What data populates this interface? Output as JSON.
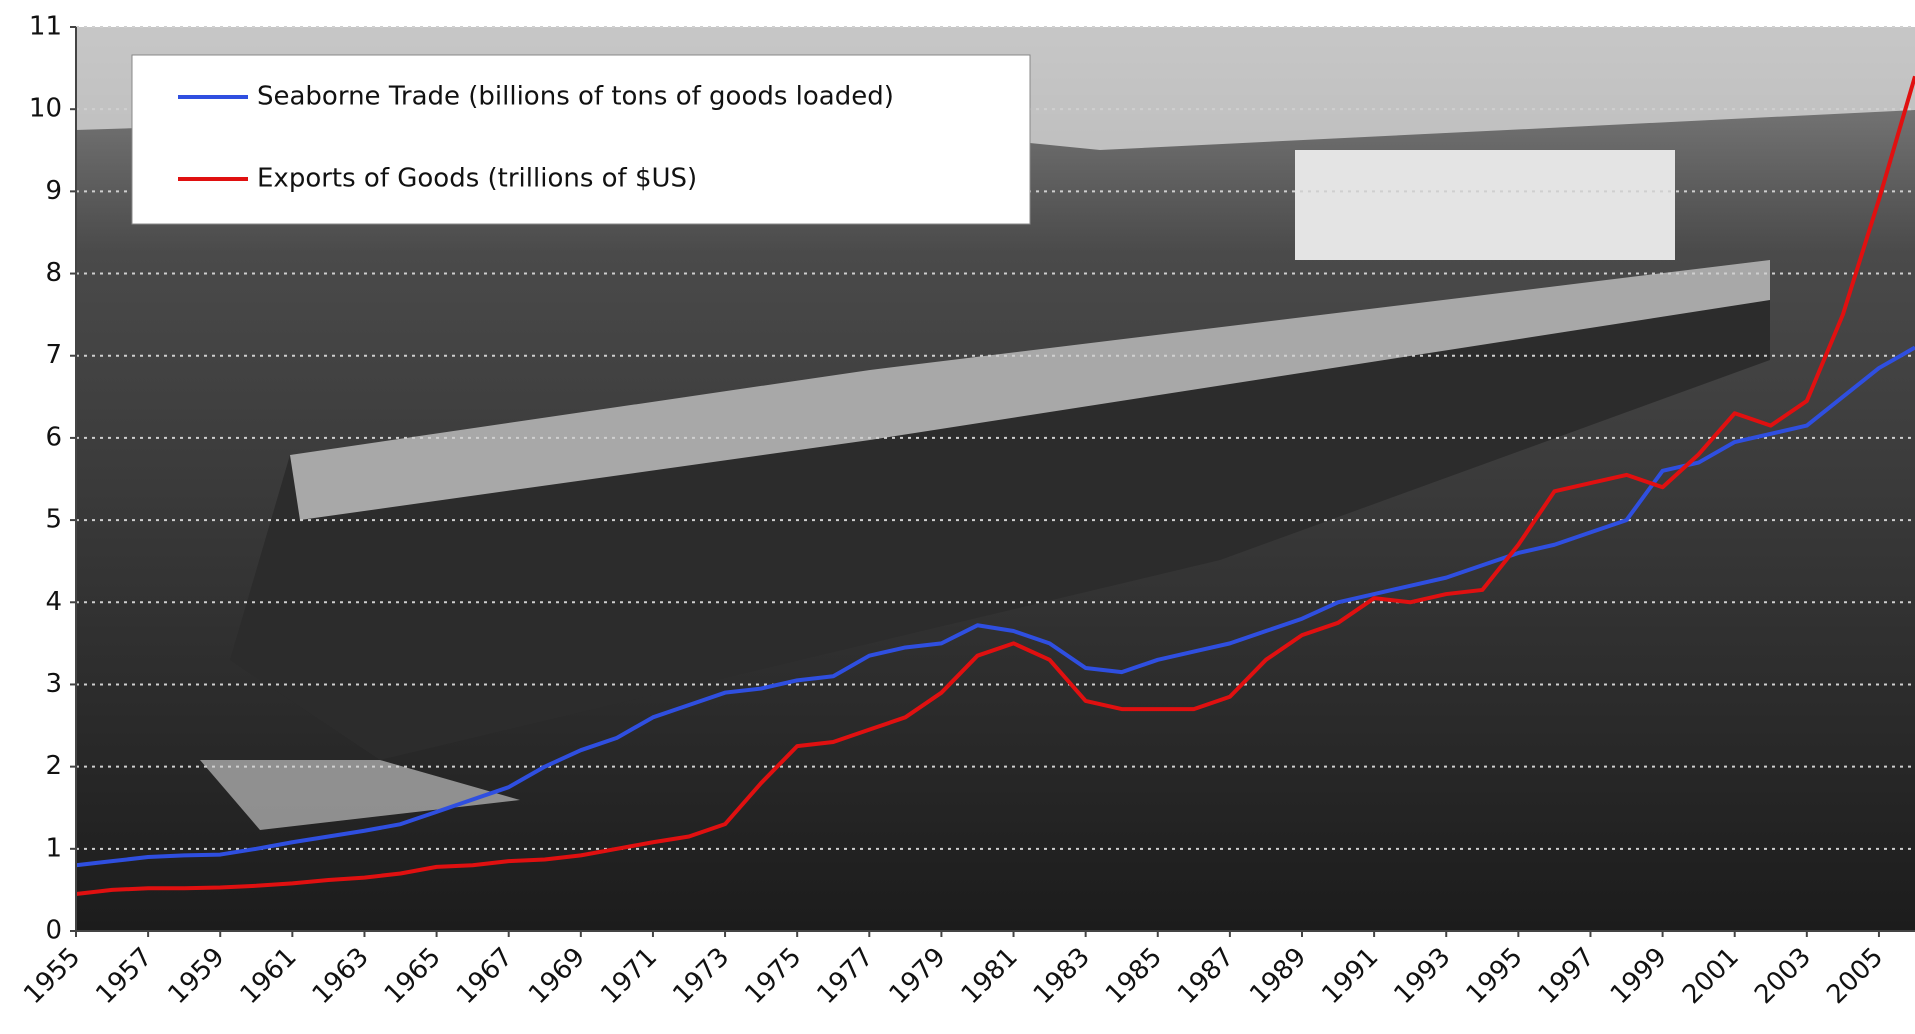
{
  "chart_data": {
    "type": "line",
    "x": [
      1955,
      1956,
      1957,
      1958,
      1959,
      1960,
      1961,
      1962,
      1963,
      1964,
      1965,
      1966,
      1967,
      1968,
      1969,
      1970,
      1971,
      1972,
      1973,
      1974,
      1975,
      1976,
      1977,
      1978,
      1979,
      1980,
      1981,
      1982,
      1983,
      1984,
      1985,
      1986,
      1987,
      1988,
      1989,
      1990,
      1991,
      1992,
      1993,
      1994,
      1995,
      1996,
      1997,
      1998,
      1999,
      2000,
      2001,
      2002,
      2003,
      2004,
      2005,
      2006
    ],
    "series": [
      {
        "name": "Seaborne Trade (billions of tons of goods loaded)",
        "color": "#2f4fe0",
        "values": [
          0.8,
          0.85,
          0.9,
          0.92,
          0.93,
          1.0,
          1.08,
          1.15,
          1.22,
          1.3,
          1.45,
          1.6,
          1.75,
          2.0,
          2.2,
          2.35,
          2.6,
          2.75,
          2.9,
          2.95,
          3.05,
          3.1,
          3.35,
          3.45,
          3.5,
          3.72,
          3.65,
          3.5,
          3.2,
          3.15,
          3.3,
          3.4,
          3.5,
          3.65,
          3.8,
          4.0,
          4.1,
          4.2,
          4.3,
          4.45,
          4.6,
          4.7,
          4.85,
          5.0,
          5.6,
          5.7,
          5.95,
          6.05,
          6.15,
          6.5,
          6.85,
          7.1
        ]
      },
      {
        "name": "Exports of Goods (trillions of $US)",
        "color": "#e01010",
        "values": [
          0.45,
          0.5,
          0.52,
          0.52,
          0.53,
          0.55,
          0.58,
          0.62,
          0.65,
          0.7,
          0.78,
          0.8,
          0.85,
          0.87,
          0.92,
          1.0,
          1.08,
          1.15,
          1.3,
          1.8,
          2.25,
          2.3,
          2.45,
          2.6,
          2.9,
          3.35,
          3.5,
          3.3,
          2.8,
          2.7,
          2.7,
          2.7,
          2.85,
          3.3,
          3.6,
          3.75,
          4.05,
          4.0,
          4.1,
          4.15,
          4.7,
          5.35,
          5.45,
          5.55,
          5.4,
          5.8,
          6.3,
          6.15,
          6.45,
          7.5,
          8.9,
          10.4
        ]
      }
    ],
    "xlim": [
      1955,
      2006
    ],
    "xticks": [
      1955,
      1957,
      1959,
      1961,
      1963,
      1965,
      1967,
      1969,
      1971,
      1973,
      1975,
      1977,
      1979,
      1981,
      1983,
      1985,
      1987,
      1989,
      1991,
      1993,
      1995,
      1997,
      1999,
      2001,
      2003,
      2005
    ],
    "ylim": [
      0,
      11
    ],
    "yticks": [
      0,
      1,
      2,
      3,
      4,
      5,
      6,
      7,
      8,
      9,
      10,
      11
    ],
    "grid": true
  }
}
